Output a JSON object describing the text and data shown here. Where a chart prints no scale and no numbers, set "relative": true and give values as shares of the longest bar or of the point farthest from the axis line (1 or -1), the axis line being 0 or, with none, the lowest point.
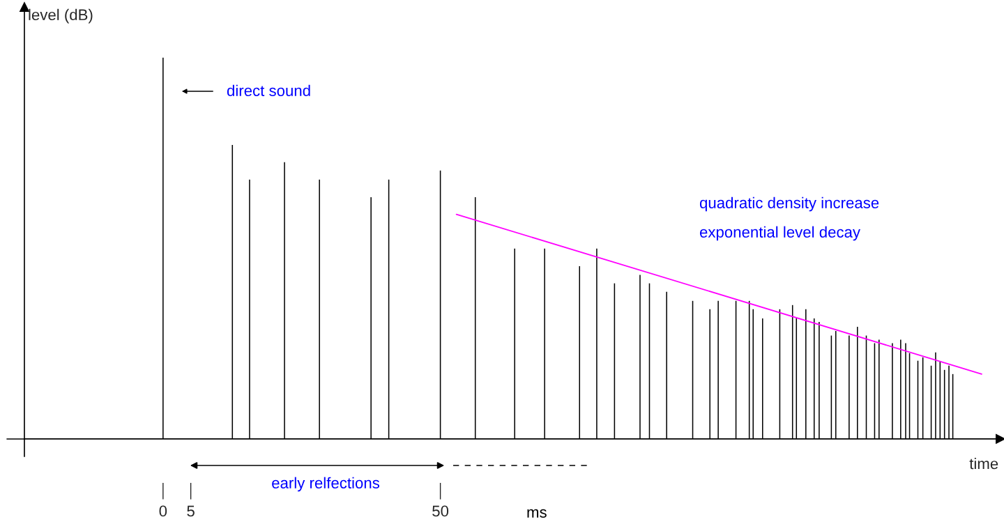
{
  "chart_data": {
    "type": "bar",
    "relative": true,
    "xlabel": "time",
    "ylabel": "level (dB)",
    "xlim": [
      -25,
      151
    ],
    "xticks": [
      0,
      5,
      50
    ],
    "tick_labels": "x",
    "series": [
      {
        "color": "#000000",
        "x": [
          0,
          12.5,
          15.6,
          21.9,
          28.2,
          37.5,
          40.7,
          50,
          56.3,
          63.4,
          68.8,
          75.1,
          78.2,
          81.4,
          86.0,
          87.7,
          90.8,
          95.5,
          98.6,
          100.1,
          103.3,
          105.7,
          106.4,
          108.1,
          111.2,
          113.5,
          114.2,
          115.9,
          117.4,
          118.3,
          120.5,
          121.3,
          123.7,
          125.2,
          126.8,
          128.3,
          129.1,
          131.5,
          133.0,
          133.9,
          134.6,
          136.1,
          137.0,
          138.5,
          139.3,
          140.1,
          140.9,
          141.7,
          142.4
        ],
        "values": [
          1.0,
          0.771,
          0.68,
          0.726,
          0.68,
          0.634,
          0.68,
          0.704,
          0.634,
          0.499,
          0.499,
          0.453,
          0.499,
          0.408,
          0.43,
          0.408,
          0.386,
          0.362,
          0.34,
          0.362,
          0.362,
          0.362,
          0.34,
          0.316,
          0.34,
          0.351,
          0.316,
          0.34,
          0.316,
          0.307,
          0.271,
          0.283,
          0.271,
          0.294,
          0.271,
          0.251,
          0.26,
          0.251,
          0.26,
          0.251,
          0.225,
          0.205,
          0.214,
          0.192,
          0.227,
          0.203,
          0.181,
          0.192,
          0.17
        ]
      },
      {
        "type": "line",
        "color": "#ff00ff",
        "x": [
          52.9,
          147.6
        ],
        "values": [
          0.589,
          0.17
        ]
      }
    ],
    "annotations": [
      "direct sound",
      "quadratic density increase",
      "exponential level decay",
      "early relfections",
      "ms"
    ]
  }
}
